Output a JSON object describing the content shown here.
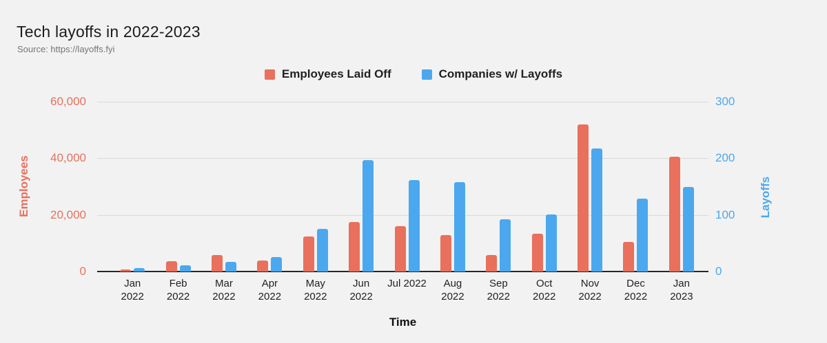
{
  "header": {
    "title": "Tech layoffs in 2022-2023",
    "source": "Source: https://layoffs.fyi"
  },
  "legend": [
    {
      "label": "Employees Laid Off",
      "color": "#E8705C"
    },
    {
      "label": "Companies w/ Layoffs",
      "color": "#4BA8EE"
    }
  ],
  "chart_data": {
    "type": "bar",
    "title": "Tech layoffs in 2022-2023",
    "source": "Source: https://layoffs.fyi",
    "xlabel": "Time",
    "background": "#F2F2F2",
    "grid": true,
    "legend_position": "top",
    "categories": [
      "Jan 2022",
      "Feb 2022",
      "Mar 2022",
      "Apr 2022",
      "May 2022",
      "Jun 2022",
      "Jul 2022",
      "Aug 2022",
      "Sep 2022",
      "Oct 2022",
      "Nov 2022",
      "Dec 2022",
      "Jan 2023"
    ],
    "category_label_lines": [
      [
        "Jan",
        "2022"
      ],
      [
        "Feb",
        "2022"
      ],
      [
        "Mar",
        "2022"
      ],
      [
        "Apr",
        "2022"
      ],
      [
        "May",
        "2022"
      ],
      [
        "Jun",
        "2022"
      ],
      [
        "Jul 2022"
      ],
      [
        "Aug",
        "2022"
      ],
      [
        "Sep",
        "2022"
      ],
      [
        "Oct",
        "2022"
      ],
      [
        "Nov",
        "2022"
      ],
      [
        "Dec",
        "2022"
      ],
      [
        "Jan",
        "2023"
      ]
    ],
    "series": [
      {
        "name": "Employees Laid Off",
        "axis": "left",
        "color": "#E8705C",
        "values": [
          700,
          3600,
          5800,
          4000,
          12300,
          17400,
          16000,
          12900,
          5800,
          13300,
          52000,
          10400,
          40500
        ]
      },
      {
        "name": "Companies w/ Layoffs",
        "axis": "right",
        "color": "#4BA8EE",
        "values": [
          6,
          11,
          17,
          26,
          75,
          197,
          161,
          158,
          92,
          101,
          218,
          129,
          150
        ]
      }
    ],
    "left_axis": {
      "title": "Employees",
      "color": "#E8705C",
      "min": 0,
      "max": 60000,
      "ticks": [
        "60,000",
        "40,000",
        "20,000",
        "0"
      ]
    },
    "right_axis": {
      "title": "Layoffs",
      "color": "#4BA8EE",
      "min": 0,
      "max": 300,
      "ticks": [
        "300",
        "200",
        "100",
        "0"
      ]
    },
    "gridline_color": "#D9D9D9",
    "baseline_color": "#262626"
  }
}
